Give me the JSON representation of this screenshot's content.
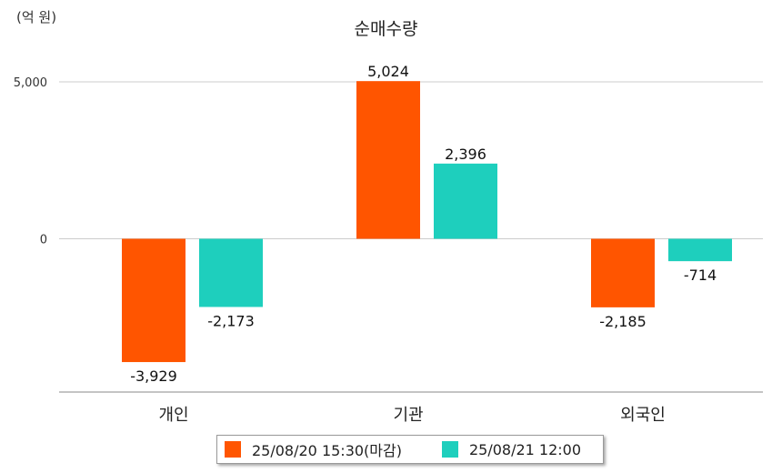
{
  "chart_data": {
    "type": "bar",
    "title": "순매수량",
    "unit_label": "(억 원)",
    "categories": [
      "개인",
      "기관",
      "외국인"
    ],
    "series": [
      {
        "name": "25/08/20 15:30(마감)",
        "color": "#ff5500",
        "values": [
          -3929,
          5024,
          -2185
        ]
      },
      {
        "name": "25/08/21 12:00",
        "color": "#1ecfbd",
        "values": [
          -2173,
          2396,
          -714
        ]
      }
    ],
    "y_ticks": [
      0,
      5000
    ],
    "y_tick_labels": [
      "0",
      "5,000"
    ],
    "data_labels": [
      [
        "-3,929",
        "5,024",
        "-2,185"
      ],
      [
        "-2,173",
        "2,396",
        "-714"
      ]
    ],
    "grid": true,
    "legend_position": "bottom"
  }
}
